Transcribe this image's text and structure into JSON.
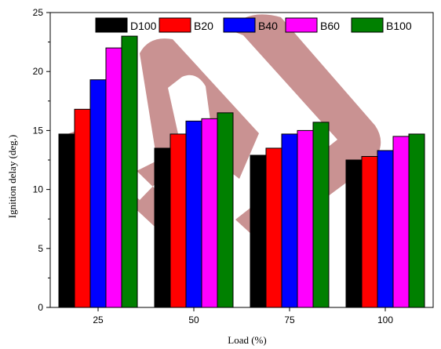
{
  "chart_data": {
    "type": "bar",
    "categories": [
      "25",
      "50",
      "75",
      "100"
    ],
    "series": [
      {
        "name": "D100",
        "color": "#000000",
        "values": [
          14.7,
          13.5,
          12.9,
          12.5
        ]
      },
      {
        "name": "B20",
        "color": "#ff0000",
        "values": [
          16.8,
          14.7,
          13.5,
          12.8
        ]
      },
      {
        "name": "B40",
        "color": "#0000ff",
        "values": [
          19.3,
          15.8,
          14.7,
          13.3
        ]
      },
      {
        "name": "B60",
        "color": "#ff00ff",
        "values": [
          22.0,
          16.0,
          15.0,
          14.5
        ]
      },
      {
        "name": "B100",
        "color": "#008000",
        "values": [
          23.0,
          16.5,
          15.7,
          14.7
        ]
      }
    ],
    "xlabel": "Load (%)",
    "ylabel": "Ignition delay (deg.)",
    "ylim": [
      0,
      25
    ],
    "yticks": [
      "0",
      "5",
      "10",
      "15",
      "20",
      "25"
    ],
    "grid": false,
    "legend_position": "top",
    "watermark": "logo watermark"
  }
}
